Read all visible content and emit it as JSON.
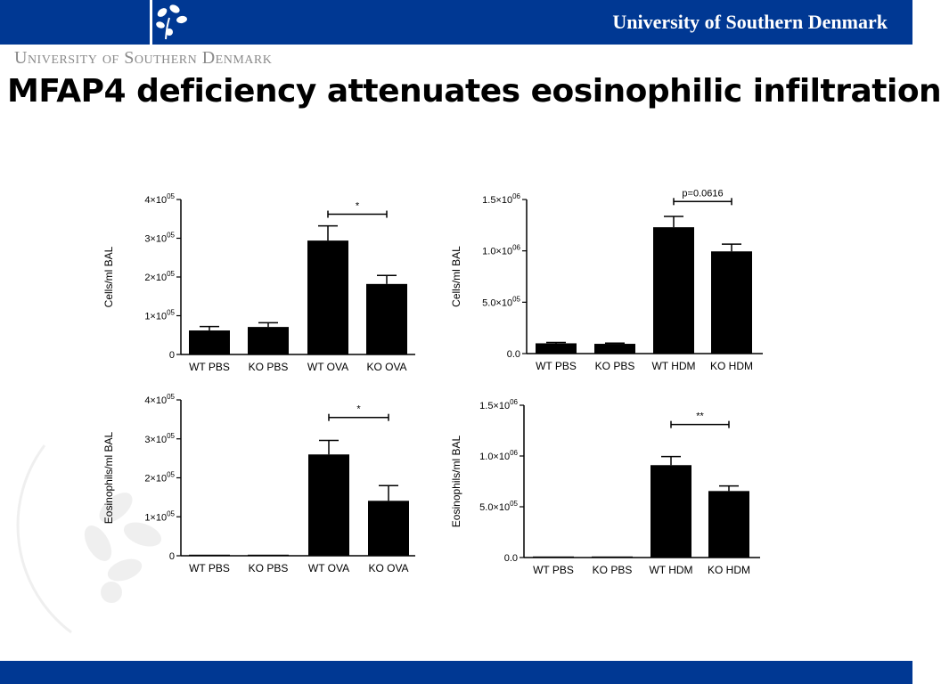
{
  "header": {
    "brand_right": "University of Southern Denmark",
    "brand_left": "University of Southern Denmark",
    "bar_color": "#003893"
  },
  "slide": {
    "title": "MFAP4 deficiency attenuates eosinophilic infiltration"
  },
  "chart_data": [
    {
      "type": "bar",
      "categories": [
        "WT PBS",
        "KO PBS",
        "WT OVA",
        "KO OVA"
      ],
      "values": [
        62000,
        71000,
        294000,
        182000
      ],
      "errors": [
        10000,
        11000,
        38000,
        22000
      ],
      "ylabel": "Cells/ml BAL",
      "ylim": [
        0,
        400000
      ],
      "yticks": [
        {
          "v": 0,
          "m": "0",
          "e": ""
        },
        {
          "v": 100000,
          "m": "1×10",
          "e": "05"
        },
        {
          "v": 200000,
          "m": "2×10",
          "e": "05"
        },
        {
          "v": 300000,
          "m": "3×10",
          "e": "05"
        },
        {
          "v": 400000,
          "m": "4×10",
          "e": "05"
        }
      ],
      "annotation": {
        "from": 2,
        "to": 3,
        "level": 362000,
        "label": "*"
      },
      "color": "#000000"
    },
    {
      "type": "bar",
      "categories": [
        "WT PBS",
        "KO PBS",
        "WT HDM",
        "KO HDM"
      ],
      "values": [
        100000,
        95000,
        1230000,
        995000
      ],
      "errors": [
        8000,
        7000,
        105000,
        70000
      ],
      "ylabel": "Cells/ml BAL",
      "ylim": [
        0,
        1500000
      ],
      "yticks": [
        {
          "v": 0,
          "m": "0.0",
          "e": ""
        },
        {
          "v": 500000,
          "m": "5.0×10",
          "e": "05"
        },
        {
          "v": 1000000,
          "m": "1.0×10",
          "e": "06"
        },
        {
          "v": 1500000,
          "m": "1.5×10",
          "e": "06"
        }
      ],
      "annotation": {
        "from": 2,
        "to": 3,
        "level": 1480000,
        "label": "p=0.0616"
      },
      "color": "#000000"
    },
    {
      "type": "bar",
      "categories": [
        "WT PBS",
        "KO PBS",
        "WT OVA",
        "KO OVA"
      ],
      "values": [
        1000,
        1000,
        260000,
        141000
      ],
      "errors": [
        0,
        0,
        36000,
        39000
      ],
      "ylabel": "Eosinophils/ml BAL",
      "ylim": [
        0,
        400000
      ],
      "yticks": [
        {
          "v": 0,
          "m": "0",
          "e": ""
        },
        {
          "v": 100000,
          "m": "1×10",
          "e": "05"
        },
        {
          "v": 200000,
          "m": "2×10",
          "e": "05"
        },
        {
          "v": 300000,
          "m": "3×10",
          "e": "05"
        },
        {
          "v": 400000,
          "m": "4×10",
          "e": "05"
        }
      ],
      "annotation": {
        "from": 2,
        "to": 3,
        "level": 355000,
        "label": "*"
      },
      "color": "#000000"
    },
    {
      "type": "bar",
      "categories": [
        "WT PBS",
        "KO PBS",
        "WT HDM",
        "KO HDM"
      ],
      "values": [
        3000,
        3000,
        910000,
        655000
      ],
      "errors": [
        0,
        0,
        85000,
        50000
      ],
      "ylabel": "Eosinophils/ml BAL",
      "ylim": [
        0,
        1500000
      ],
      "yticks": [
        {
          "v": 0,
          "m": "0.0",
          "e": ""
        },
        {
          "v": 500000,
          "m": "5.0×10",
          "e": "05"
        },
        {
          "v": 1000000,
          "m": "1.0×10",
          "e": "06"
        },
        {
          "v": 1500000,
          "m": "1.5×10",
          "e": "06"
        }
      ],
      "annotation": {
        "from": 2,
        "to": 3,
        "level": 1310000,
        "label": "**"
      },
      "color": "#000000"
    }
  ]
}
